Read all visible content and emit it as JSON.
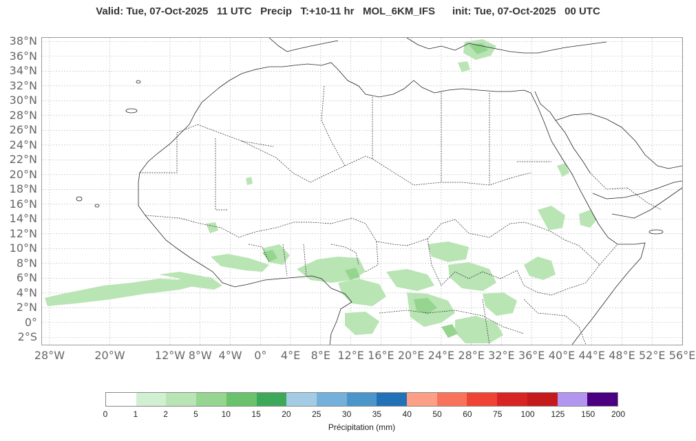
{
  "title": "Valid: Tue, 07-Oct-2025   11 UTC   Precip   T:+10-11 hr   MOL_6KM_IFS      init: Tue, 07-Oct-2025   00 UTC",
  "axes": {
    "lat_labels": [
      "38°N",
      "36°N",
      "34°N",
      "32°N",
      "30°N",
      "28°N",
      "26°N",
      "24°N",
      "22°N",
      "20°N",
      "18°N",
      "16°N",
      "14°N",
      "12°N",
      "10°N",
      "8°N",
      "6°N",
      "4°N",
      "2°N",
      "0°",
      "2°S"
    ],
    "lat_values": [
      38,
      36,
      34,
      32,
      30,
      28,
      26,
      24,
      22,
      20,
      18,
      16,
      14,
      12,
      10,
      8,
      6,
      4,
      2,
      0,
      -2
    ],
    "lon_labels": [
      "28°W",
      "20°W",
      "12°W",
      "8°W",
      "4°W",
      "0°",
      "4°E",
      "8°E",
      "12°E",
      "16°E",
      "20°E",
      "24°E",
      "28°E",
      "32°E",
      "36°E",
      "40°E",
      "44°E",
      "48°E",
      "52°E",
      "56°E"
    ],
    "lon_values": [
      -28,
      -20,
      -12,
      -8,
      -4,
      0,
      4,
      8,
      12,
      16,
      20,
      24,
      28,
      32,
      36,
      40,
      44,
      48,
      52,
      56
    ],
    "lon_range": [
      -29,
      56
    ],
    "lat_range": [
      -3,
      38.5
    ],
    "grid": true
  },
  "colorbar": {
    "label": "Précipitation (mm)",
    "ticks": [
      "0",
      "1",
      "2",
      "5",
      "10",
      "15",
      "20",
      "25",
      "30",
      "35",
      "40",
      "50",
      "60",
      "75",
      "100",
      "125",
      "150",
      "200"
    ],
    "colors": [
      "#ffffff",
      "#d1f0d1",
      "#b9e4b4",
      "#96d590",
      "#6ac26c",
      "#3ea85a",
      "#a3cbe4",
      "#74b0da",
      "#4a95c9",
      "#2271b6",
      "#fc9f86",
      "#f9735b",
      "#ef4333",
      "#d72523",
      "#c41a1c",
      "#b295ef",
      "#4a0080"
    ]
  }
}
